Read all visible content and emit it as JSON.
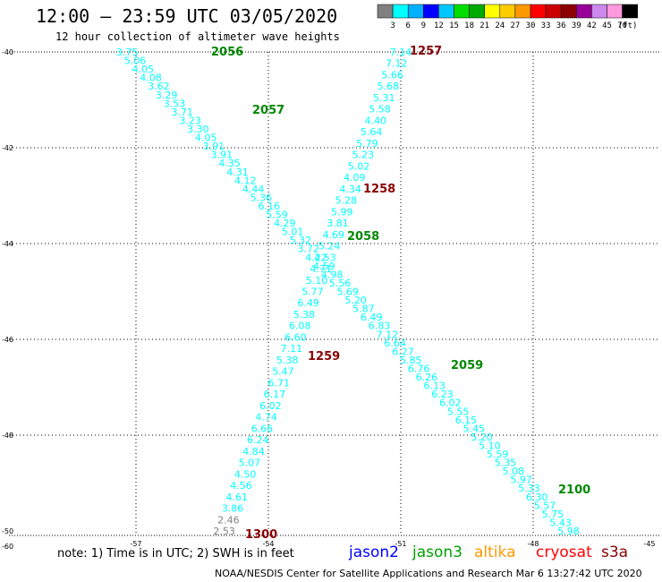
{
  "header": {
    "title": "12:00 – 23:59 UTC 03/05/2020",
    "subtitle": "12 hour collection of altimeter wave heights"
  },
  "colorbar": {
    "colors": [
      "#808080",
      "#00ffff",
      "#00b0ff",
      "#0000ff",
      "#00c8ff",
      "#00dd00",
      "#00aa00",
      "#ffff00",
      "#ffcc00",
      "#ff9900",
      "#ff0000",
      "#cc0000",
      "#8b0000",
      "#990099",
      "#cc88ee",
      "#ff99dd",
      "#000000"
    ],
    "labels": [
      "3",
      "6",
      "9",
      "12",
      "15",
      "18",
      "21",
      "24",
      "27",
      "30",
      "33",
      "36",
      "39",
      "42",
      "45",
      "70"
    ],
    "unit": "(ft)"
  },
  "axes": {
    "x_ticks": [
      "-57",
      "-54",
      "-51",
      "-48",
      "-45"
    ],
    "y_ticks": [
      "-40",
      "-42",
      "-44",
      "-46",
      "-48",
      "-50"
    ],
    "corner_label": "-60"
  },
  "tracks": [
    {
      "satellite": "jason3",
      "color": "#00ffff",
      "start": [
        -57.2,
        -40.0
      ],
      "end": [
        -47.2,
        -50.0
      ],
      "values": [
        "3.75",
        "5.06",
        "4.05",
        "4.08",
        "3.62",
        "3.29",
        "3.53",
        "3.71",
        "3.23",
        "3.30",
        "4.05",
        "3.91",
        "3.91",
        "4.35",
        "4.31",
        "4.12",
        "4.44",
        "5.36",
        "6.16",
        "5.59",
        "4.29",
        "5.01",
        "5.32",
        "3.72",
        "4.22",
        "4.59",
        "4.98",
        "5.56",
        "5.69",
        "5.20",
        "5.87",
        "6.49",
        "6.83",
        "7.12",
        "6.64",
        "6.27",
        "5.85",
        "6.76",
        "6.26",
        "6.13",
        "6.23",
        "6.02",
        "5.55",
        "6.15",
        "5.45",
        "5.20",
        "5.10",
        "5.59",
        "5.35",
        "5.08",
        "5.97",
        "5.33",
        "6.30",
        "5.57",
        "5.75",
        "5.43",
        "5.98"
      ]
    },
    {
      "satellite": "cryosat",
      "color": "#00ffff",
      "start": [
        -51.0,
        -40.0
      ],
      "end": [
        -55.0,
        -50.0
      ],
      "values": [
        "7.14",
        "7.12",
        "5.66",
        "5.68",
        "5.31",
        "5.58",
        "4.40",
        "5.64",
        "5.79",
        "5.23",
        "5.02",
        "4.09",
        "4.34",
        "5.28",
        "5.99",
        "3.81",
        "4.69",
        "5.24",
        "4.53",
        "4.71",
        "5.10",
        "5.77",
        "6.49",
        "5.38",
        "6.08",
        "6.60",
        "7.11",
        "5.38",
        "5.47",
        "6.71",
        "6.17",
        "6.02",
        "4.74",
        "6.66",
        "6.24",
        "4.84",
        "5.07",
        "4.50",
        "4.56",
        "4.61",
        "3.86",
        "2.46",
        "2.53"
      ]
    }
  ],
  "time_labels": [
    {
      "text": "2056",
      "color": "#008800"
    },
    {
      "text": "2057",
      "color": "#008800"
    },
    {
      "text": "2058",
      "color": "#008800"
    },
    {
      "text": "2059",
      "color": "#008800"
    },
    {
      "text": "2100",
      "color": "#008800"
    },
    {
      "text": "1257",
      "color": "#880000"
    },
    {
      "text": "1258",
      "color": "#880000"
    },
    {
      "text": "1259",
      "color": "#880000"
    },
    {
      "text": "1300",
      "color": "#880000"
    }
  ],
  "footer": {
    "note": "note:  1) Time is in UTC;  2) SWH is in feet",
    "satellites": [
      {
        "name": "jason2",
        "color": "#0000ff"
      },
      {
        "name": "jason3",
        "color": "#00a000"
      },
      {
        "name": "altika",
        "color": "#ff9900"
      },
      {
        "name": "cryosat",
        "color": "#ff0000"
      },
      {
        "name": "s3a",
        "color": "#880000"
      }
    ],
    "credit": "NOAA/NESDIS Center for Satellite Applications and Research   Mar  6 13:27:42 UTC 2020"
  }
}
